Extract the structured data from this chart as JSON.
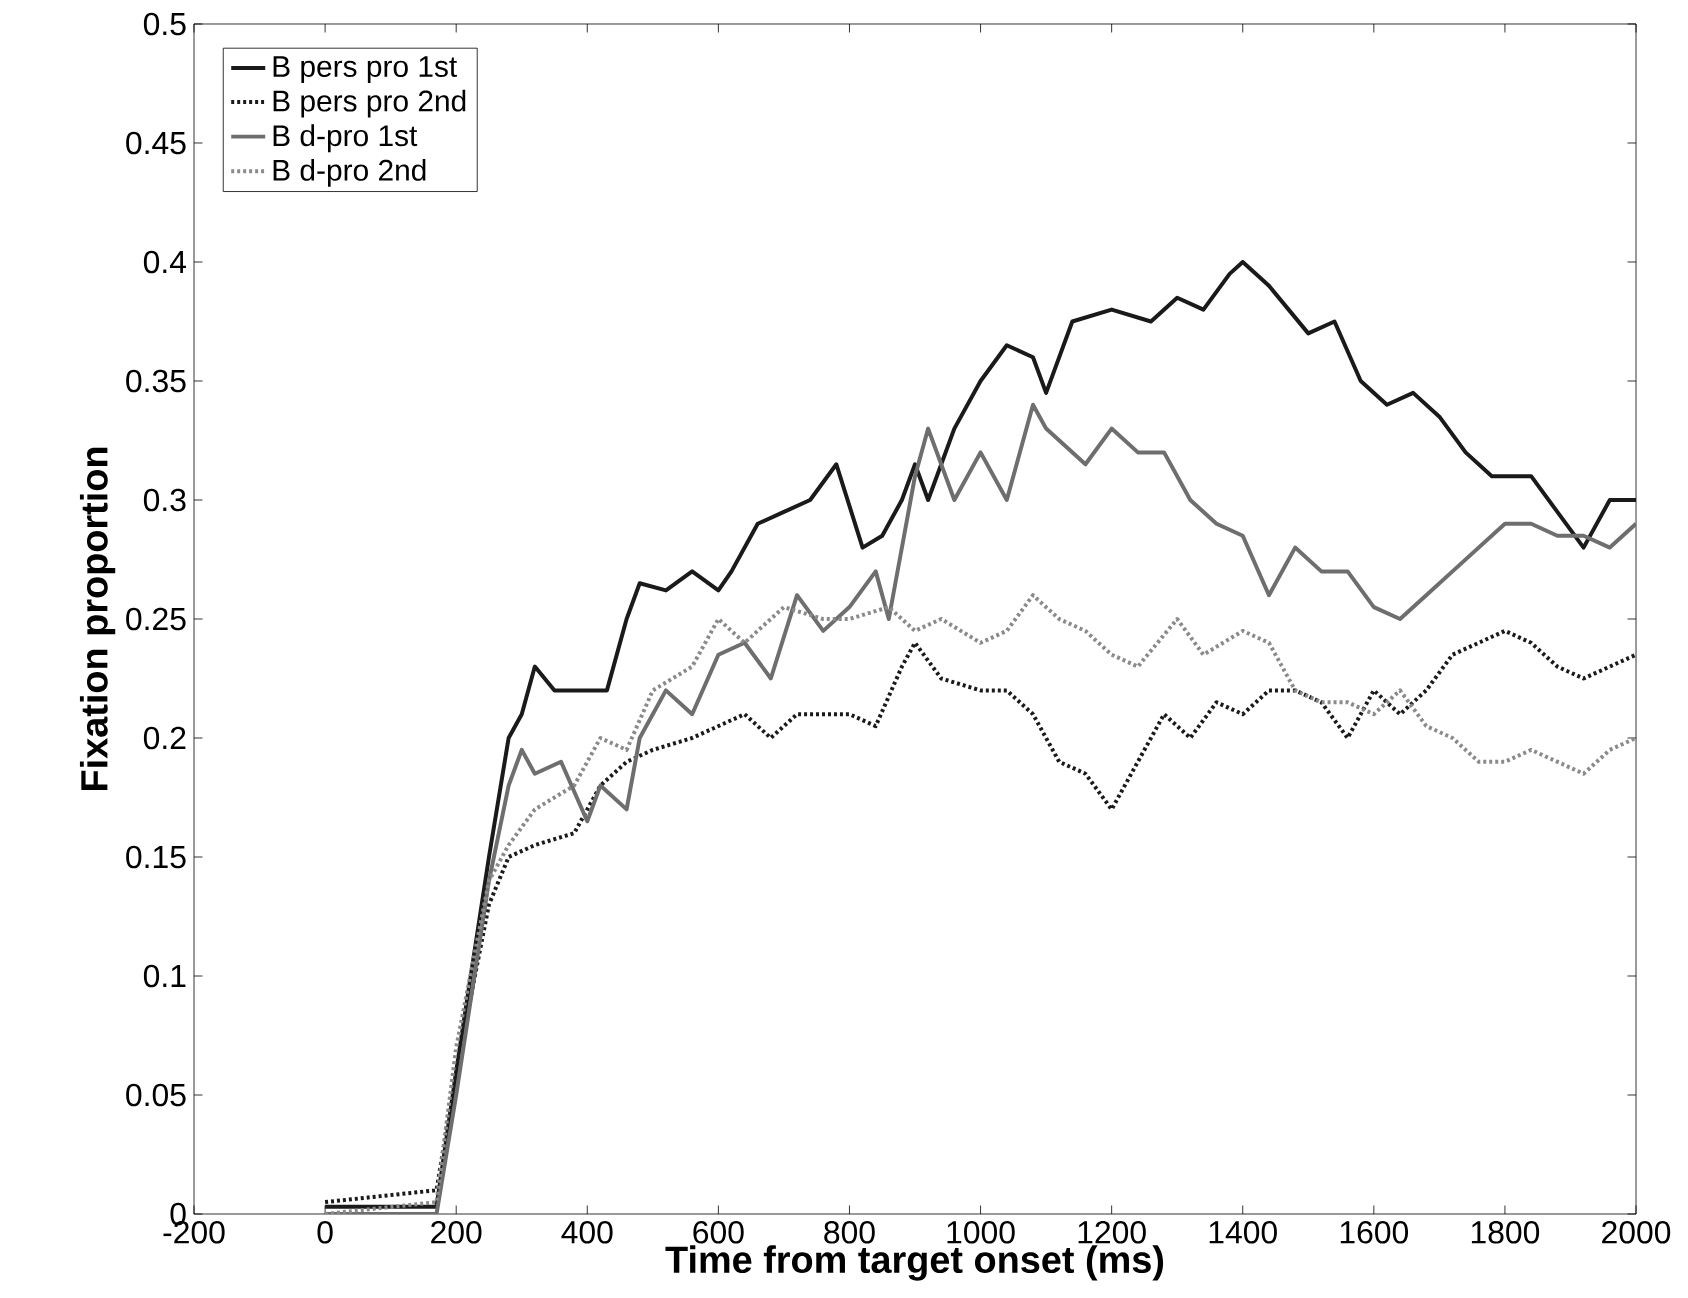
{
  "chart_data": {
    "type": "line",
    "xlabel": "Time from target onset (ms)",
    "ylabel": "Fixation proportion",
    "xlim": [
      -200,
      2000
    ],
    "ylim": [
      0,
      0.5
    ],
    "xticks": [
      -200,
      0,
      200,
      400,
      600,
      800,
      1000,
      1200,
      1400,
      1600,
      1800,
      2000
    ],
    "yticks": [
      0,
      0.05,
      0.1,
      0.15,
      0.2,
      0.25,
      0.3,
      0.35,
      0.4,
      0.45,
      0.5
    ],
    "grid": false,
    "legend": "top left",
    "marker": "none",
    "series": [
      {
        "name": "B pers pro 1st",
        "color": "#1a1a1a",
        "line_style": "solid",
        "x": [
          0,
          170,
          200,
          250,
          280,
          300,
          320,
          350,
          400,
          430,
          460,
          480,
          520,
          560,
          600,
          620,
          660,
          700,
          740,
          780,
          820,
          850,
          880,
          900,
          920,
          960,
          1000,
          1040,
          1080,
          1100,
          1140,
          1200,
          1260,
          1300,
          1340,
          1380,
          1400,
          1440,
          1500,
          1540,
          1580,
          1620,
          1660,
          1700,
          1740,
          1780,
          1800,
          1840,
          1880,
          1920,
          1960,
          1980,
          2000
        ],
        "values": [
          0.003,
          0.003,
          0.06,
          0.15,
          0.2,
          0.21,
          0.23,
          0.22,
          0.22,
          0.22,
          0.25,
          0.265,
          0.262,
          0.27,
          0.262,
          0.27,
          0.29,
          0.295,
          0.3,
          0.315,
          0.28,
          0.285,
          0.3,
          0.315,
          0.3,
          0.33,
          0.35,
          0.365,
          0.36,
          0.345,
          0.375,
          0.38,
          0.375,
          0.385,
          0.38,
          0.395,
          0.4,
          0.39,
          0.37,
          0.375,
          0.35,
          0.34,
          0.345,
          0.335,
          0.32,
          0.31,
          0.31,
          0.31,
          0.295,
          0.28,
          0.3,
          0.3,
          0.3
        ]
      },
      {
        "name": "B pers pro 2nd",
        "color": "#1a1a1a",
        "line_style": "dotted",
        "x": [
          0,
          170,
          200,
          250,
          280,
          320,
          380,
          420,
          460,
          500,
          560,
          600,
          640,
          680,
          720,
          760,
          800,
          840,
          880,
          900,
          940,
          1000,
          1040,
          1080,
          1120,
          1160,
          1200,
          1240,
          1280,
          1320,
          1360,
          1400,
          1440,
          1480,
          1520,
          1560,
          1600,
          1640,
          1680,
          1720,
          1760,
          1800,
          1840,
          1880,
          1920,
          1960,
          2000
        ],
        "values": [
          0.005,
          0.01,
          0.06,
          0.13,
          0.15,
          0.155,
          0.16,
          0.18,
          0.19,
          0.195,
          0.2,
          0.205,
          0.21,
          0.2,
          0.21,
          0.21,
          0.21,
          0.205,
          0.23,
          0.24,
          0.225,
          0.22,
          0.22,
          0.21,
          0.19,
          0.185,
          0.17,
          0.19,
          0.21,
          0.2,
          0.215,
          0.21,
          0.22,
          0.22,
          0.215,
          0.2,
          0.22,
          0.21,
          0.22,
          0.235,
          0.24,
          0.245,
          0.24,
          0.23,
          0.225,
          0.23,
          0.235
        ]
      },
      {
        "name": "B d-pro 1st",
        "color": "#6e6e6e",
        "line_style": "solid",
        "x": [
          0,
          170,
          200,
          250,
          280,
          300,
          320,
          360,
          400,
          420,
          460,
          480,
          520,
          560,
          600,
          640,
          680,
          720,
          760,
          800,
          840,
          860,
          900,
          920,
          960,
          1000,
          1040,
          1080,
          1100,
          1160,
          1200,
          1240,
          1280,
          1320,
          1360,
          1400,
          1440,
          1480,
          1520,
          1560,
          1600,
          1640,
          1680,
          1720,
          1760,
          1800,
          1840,
          1880,
          1920,
          1960,
          2000
        ],
        "values": [
          0,
          0,
          0.05,
          0.14,
          0.18,
          0.195,
          0.185,
          0.19,
          0.165,
          0.18,
          0.17,
          0.2,
          0.22,
          0.21,
          0.235,
          0.24,
          0.225,
          0.26,
          0.245,
          0.255,
          0.27,
          0.25,
          0.31,
          0.33,
          0.3,
          0.32,
          0.3,
          0.34,
          0.33,
          0.315,
          0.33,
          0.32,
          0.32,
          0.3,
          0.29,
          0.285,
          0.26,
          0.28,
          0.27,
          0.27,
          0.255,
          0.25,
          0.26,
          0.27,
          0.28,
          0.29,
          0.29,
          0.285,
          0.285,
          0.28,
          0.29
        ]
      },
      {
        "name": "B d-pro 2nd",
        "color": "#8a8a8a",
        "line_style": "dotted",
        "x": [
          0,
          170,
          200,
          250,
          280,
          320,
          380,
          420,
          460,
          500,
          560,
          600,
          640,
          700,
          760,
          800,
          860,
          900,
          940,
          1000,
          1040,
          1080,
          1120,
          1160,
          1200,
          1240,
          1300,
          1340,
          1400,
          1440,
          1480,
          1520,
          1560,
          1600,
          1640,
          1680,
          1720,
          1760,
          1800,
          1840,
          1880,
          1920,
          1960,
          2000
        ],
        "values": [
          0,
          0.005,
          0.07,
          0.14,
          0.155,
          0.17,
          0.18,
          0.2,
          0.195,
          0.22,
          0.23,
          0.25,
          0.24,
          0.255,
          0.25,
          0.25,
          0.255,
          0.245,
          0.25,
          0.24,
          0.245,
          0.26,
          0.25,
          0.245,
          0.235,
          0.23,
          0.25,
          0.235,
          0.245,
          0.24,
          0.22,
          0.215,
          0.215,
          0.21,
          0.22,
          0.205,
          0.2,
          0.19,
          0.19,
          0.195,
          0.19,
          0.185,
          0.195,
          0.2
        ]
      }
    ]
  }
}
